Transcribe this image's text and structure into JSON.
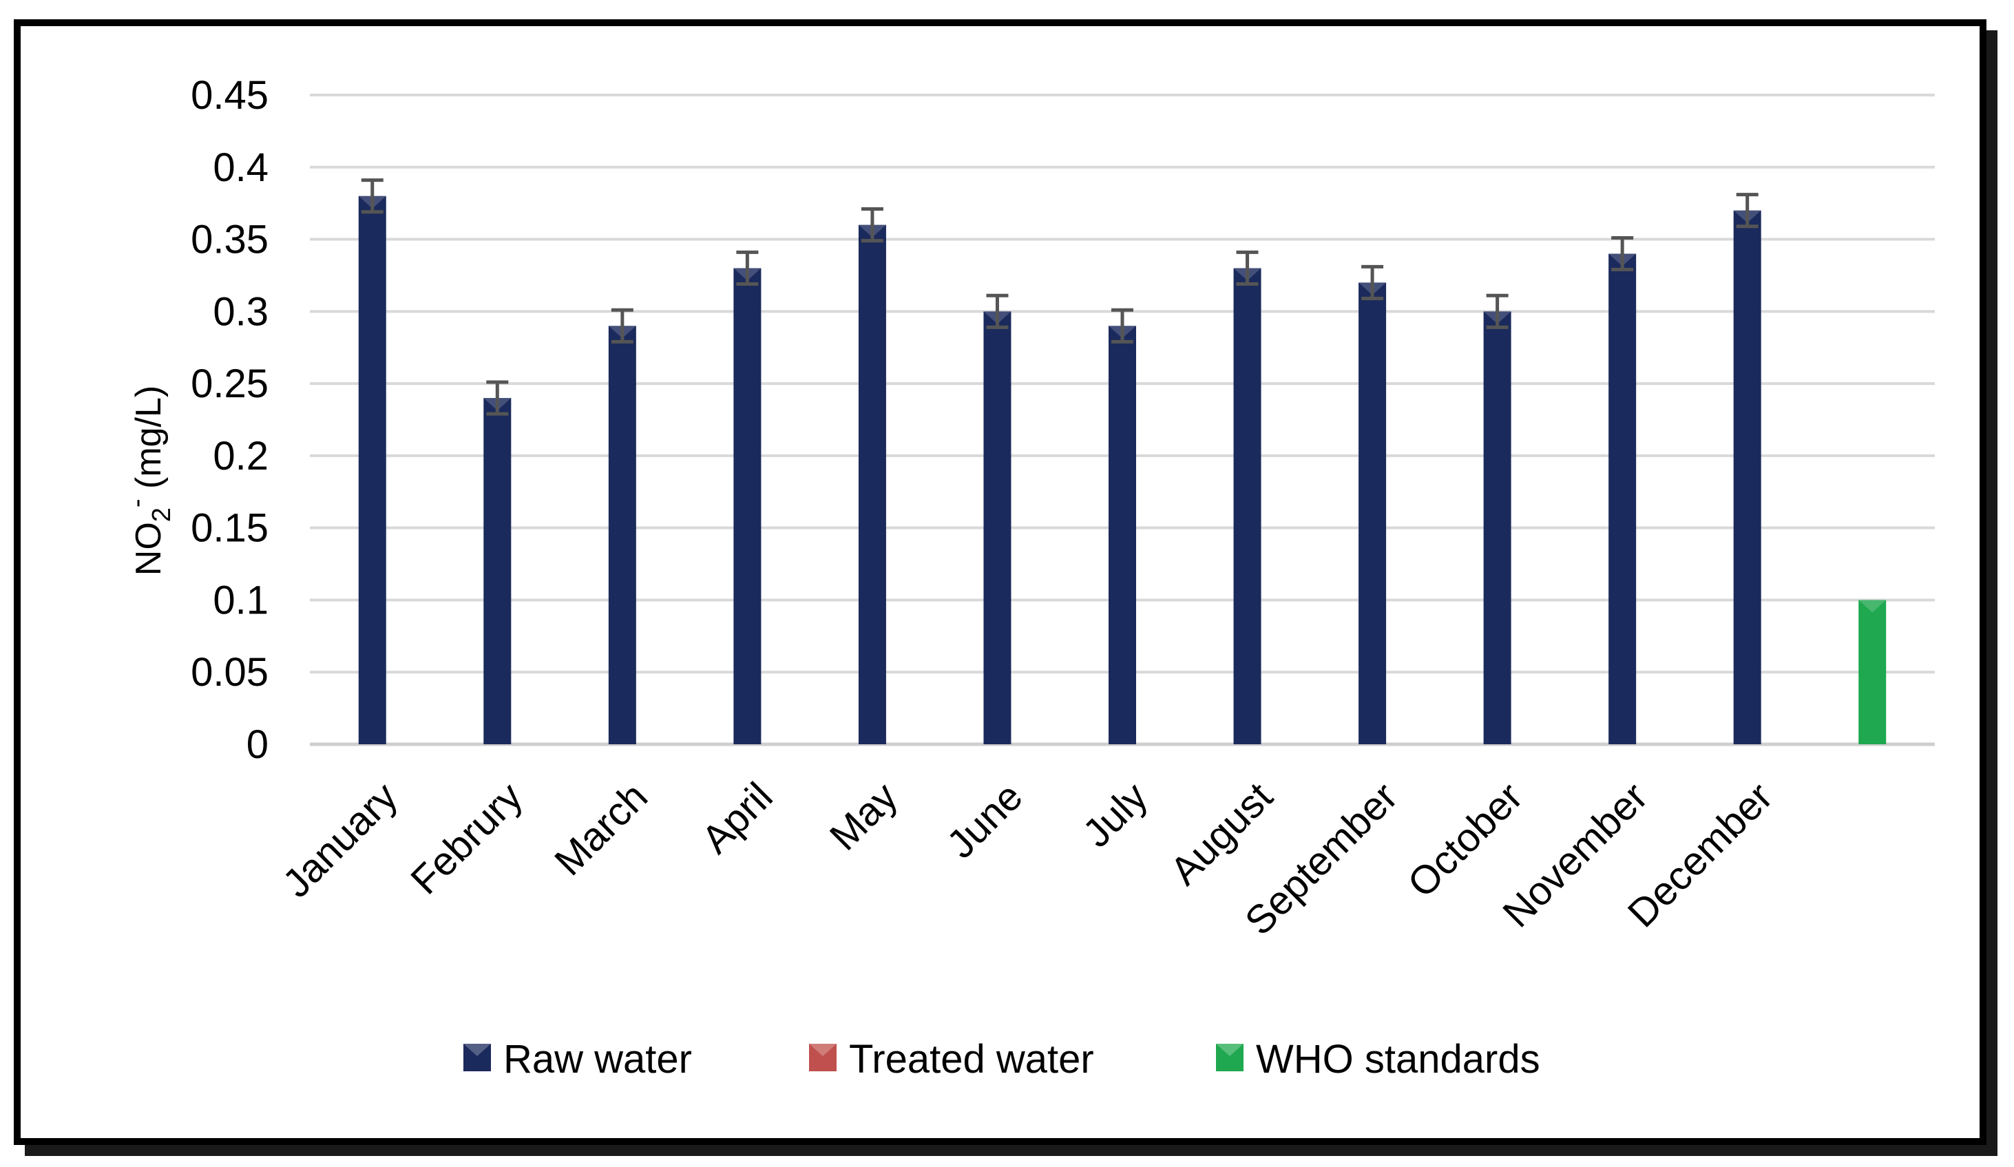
{
  "chart_data": {
    "type": "bar",
    "title": "",
    "xlabel": "",
    "ylabel": {
      "main": "NO",
      "sub": "2",
      "sup": "-",
      "unit": "(mg/L)"
    },
    "ylim": [
      0,
      0.45
    ],
    "yticks": [
      "0",
      "0.05",
      "0.1",
      "0.15",
      "0.2",
      "0.25",
      "0.3",
      "0.35",
      "0.4",
      "0.45"
    ],
    "grid": true,
    "legend_position": "bottom",
    "categories": [
      "January",
      "Februry",
      "March",
      "April",
      "May",
      "June",
      "July",
      "August",
      "September",
      "October",
      "November",
      "December",
      ""
    ],
    "series": [
      {
        "name": "Raw water",
        "color": "#1b2a5c",
        "values": [
          0.38,
          0.24,
          0.29,
          0.33,
          0.36,
          0.3,
          0.29,
          0.33,
          0.32,
          0.3,
          0.34,
          0.37,
          null
        ],
        "error": [
          0.011,
          0.011,
          0.011,
          0.011,
          0.011,
          0.011,
          0.011,
          0.011,
          0.011,
          0.011,
          0.011,
          0.011,
          null
        ]
      },
      {
        "name": "Treated water",
        "color": "#c0504d",
        "values": [
          null,
          null,
          null,
          null,
          null,
          null,
          null,
          null,
          null,
          null,
          null,
          null,
          null
        ]
      },
      {
        "name": "WHO standards",
        "color": "#1fa84f",
        "values": [
          null,
          null,
          null,
          null,
          null,
          null,
          null,
          null,
          null,
          null,
          null,
          null,
          0.1
        ]
      }
    ]
  }
}
